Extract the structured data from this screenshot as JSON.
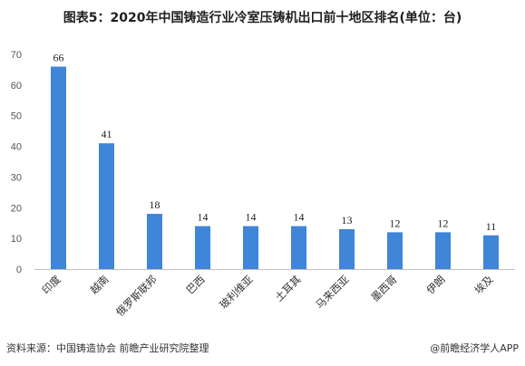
{
  "title": "图表5：2020年中国铸造行业冷室压铸机出口前十地区排名(单位：台)",
  "footer": {
    "source": "资料来源：中国铸造协会 前瞻产业研究院整理",
    "brand": "@前瞻经济学人APP"
  },
  "colors": {
    "bar": "#3f85d8",
    "axis": "#bfbfbf"
  },
  "chart_data": {
    "type": "bar",
    "title": "图表5：2020年中国铸造行业冷室压铸机出口前十地区排名(单位：台)",
    "categories": [
      "印度",
      "越南",
      "俄罗斯联邦",
      "巴西",
      "玻利维亚",
      "土耳其",
      "马来西亚",
      "墨西哥",
      "伊朗",
      "埃及"
    ],
    "values": [
      66,
      41,
      18,
      14,
      14,
      14,
      13,
      12,
      12,
      11
    ],
    "ylim": [
      0,
      70
    ],
    "yticks": [
      0,
      10,
      20,
      30,
      40,
      50,
      60,
      70
    ],
    "xlabel": "",
    "ylabel": "",
    "grid": false,
    "data_labels": true
  }
}
